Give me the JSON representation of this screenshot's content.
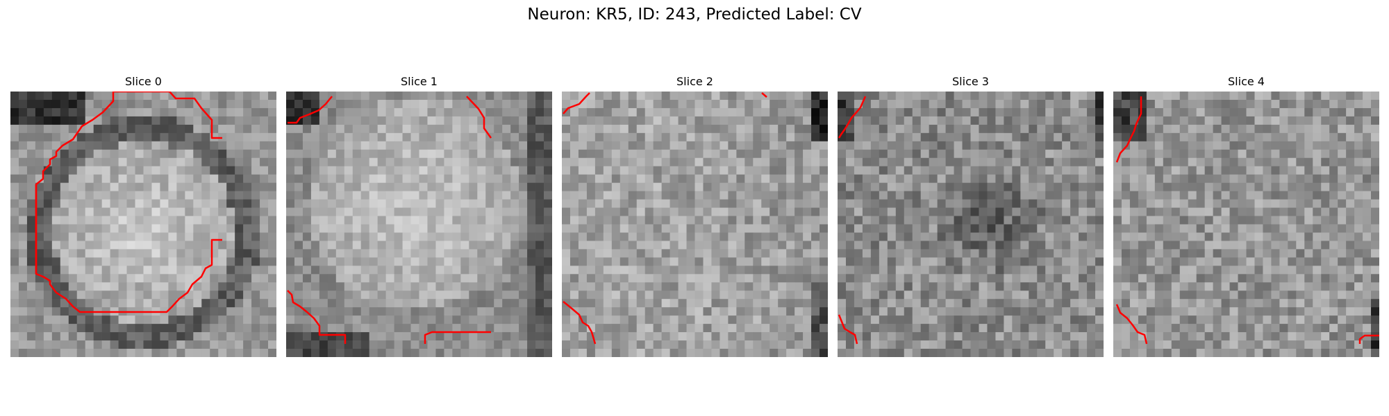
{
  "figure": {
    "suptitle": "Neuron: KR5, ID: 243, Predicted Label: CV",
    "contour_color": "#ff0000",
    "colormap": "gray"
  },
  "slices": [
    {
      "title": "Slice 0"
    },
    {
      "title": "Slice 1"
    },
    {
      "title": "Slice 2"
    },
    {
      "title": "Slice 3"
    },
    {
      "title": "Slice 4"
    }
  ]
}
